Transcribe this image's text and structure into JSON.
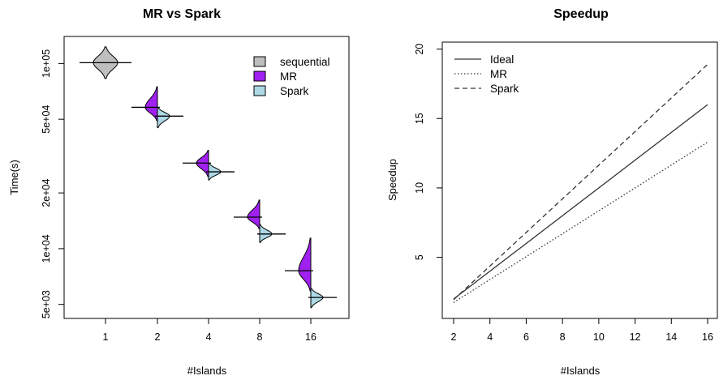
{
  "chart_data": [
    {
      "type": "violin",
      "title": "MR vs Spark",
      "xlabel": "#Islands",
      "ylabel": "Time(s)",
      "y_scale": "log",
      "ylim": [
        4200,
        140000
      ],
      "categories": [
        "1",
        "2",
        "4",
        "8",
        "16"
      ],
      "y_ticks": [
        {
          "value": 5000,
          "label": "5e+03"
        },
        {
          "value": 10000,
          "label": "1e+04"
        },
        {
          "value": 20000,
          "label": "2e+04"
        },
        {
          "value": 50000,
          "label": "5e+04"
        },
        {
          "value": 100000,
          "label": "1e+05"
        }
      ],
      "legend_position": "top-right",
      "series": [
        {
          "name": "sequential",
          "color": "#bebebe",
          "distributions": [
            {
              "category": "1",
              "median": 101000,
              "min": 83000,
              "max": 123000
            }
          ]
        },
        {
          "name": "MR",
          "color": "#a020f0",
          "distributions": [
            {
              "category": "2",
              "median": 58000,
              "min": 49000,
              "max": 75000
            },
            {
              "category": "4",
              "median": 29000,
              "min": 24500,
              "max": 34000
            },
            {
              "category": "8",
              "median": 14800,
              "min": 12800,
              "max": 18300
            },
            {
              "category": "16",
              "median": 7600,
              "min": 5900,
              "max": 11400
            }
          ]
        },
        {
          "name": "Spark",
          "color": "#add8e6",
          "distributions": [
            {
              "category": "2",
              "median": 52000,
              "min": 45000,
              "max": 58000
            },
            {
              "category": "4",
              "median": 26000,
              "min": 23500,
              "max": 29000
            },
            {
              "category": "8",
              "median": 12000,
              "min": 10800,
              "max": 13500
            },
            {
              "category": "16",
              "median": 5450,
              "min": 4800,
              "max": 6100
            }
          ]
        }
      ]
    },
    {
      "type": "line",
      "title": "Speedup",
      "xlabel": "#Islands",
      "ylabel": "Speedup",
      "xlim": [
        2,
        16
      ],
      "ylim": [
        0.6,
        20.5
      ],
      "x_ticks": [
        2,
        4,
        6,
        8,
        10,
        12,
        14,
        16
      ],
      "y_ticks": [
        5,
        10,
        15,
        20
      ],
      "legend_position": "top-left",
      "series": [
        {
          "name": "Ideal",
          "line_style": "solid",
          "x": [
            2,
            16
          ],
          "y": [
            2,
            16
          ]
        },
        {
          "name": "MR",
          "line_style": "dotted",
          "x": [
            2,
            16
          ],
          "y": [
            1.75,
            13.3
          ]
        },
        {
          "name": "Spark",
          "line_style": "dashed",
          "x": [
            2,
            16
          ],
          "y": [
            1.95,
            18.9
          ]
        }
      ]
    }
  ]
}
